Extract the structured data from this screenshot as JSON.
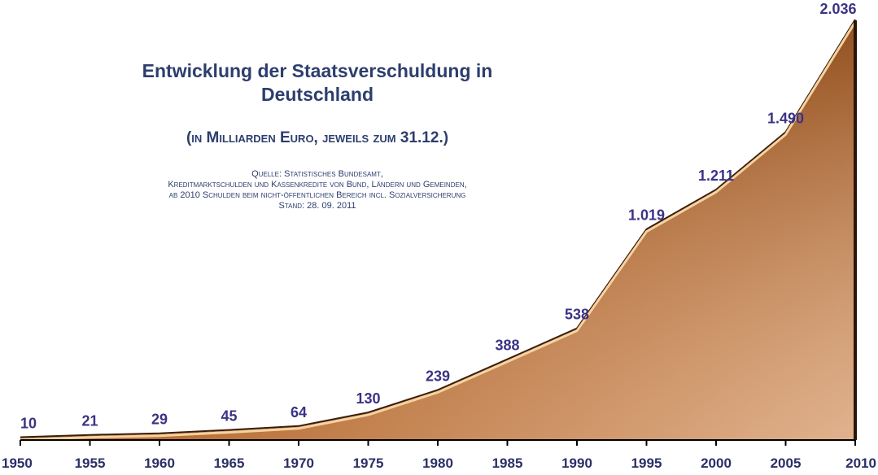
{
  "chart_data": {
    "type": "area",
    "title_line1": "Entwicklung der Staatsverschuldung in",
    "title_line2": "Deutschland",
    "subtitle": "(in Milliarden Euro, jeweils zum 31.12.)",
    "source": [
      "Quelle: Statistisches Bundesamt,",
      "Kreditmarktschulden und Kassenkredite von Bund, Ländern und Gemeinden,",
      "ab 2010 Schulden beim nicht-öffentlichen Bereich incl. Sozialversicherung",
      "Stand: 28. 09. 2011"
    ],
    "x": [
      1950,
      1955,
      1960,
      1965,
      1970,
      1975,
      1980,
      1985,
      1990,
      1995,
      2000,
      2005,
      2010
    ],
    "values": [
      10,
      21,
      29,
      45,
      64,
      130,
      239,
      388,
      538,
      1019,
      1211,
      1490,
      2036
    ],
    "value_labels": [
      "10",
      "21",
      "29",
      "45",
      "64",
      "130",
      "239",
      "388",
      "538",
      "1.019",
      "1.211",
      "1.490",
      "2.036"
    ],
    "xlabel": "",
    "ylabel": "",
    "ylim": [
      0,
      2036
    ],
    "colors": {
      "fill_dark": "#8c4a1c",
      "fill_light": "#f2c79a",
      "edge": "#f6d2a0",
      "label": "#3b3384",
      "title": "#2d3e6e"
    }
  }
}
